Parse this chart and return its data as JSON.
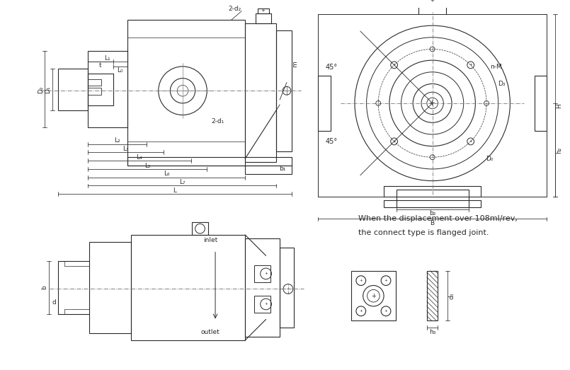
{
  "bg_color": "#ffffff",
  "line_color": "#2a2a2a",
  "text_note1": "When the displacement over 108ml/rev,",
  "text_note2": "the connect type is flanged joint.",
  "labels": {
    "L": "L",
    "L0": "L₀",
    "L1": "L₁",
    "L2": "L₂",
    "L3": "L₃",
    "L4": "L₄",
    "L5": "L₅",
    "L6": "L₆",
    "L7": "L₇",
    "D1": "D₁",
    "D2": "D₂",
    "d1": "2-d₁",
    "d2": "2-d₂",
    "m": "m",
    "b1": "b₁",
    "b2": "b₂",
    "B": "B",
    "H": "H",
    "h2": "h₂",
    "D3": "D₃",
    "D0": "D₀",
    "nM": "n-M",
    "t": "t",
    "b": "b",
    "d": "d",
    "h3": "h₃",
    "d3": "d₃",
    "inlet": "inlet",
    "outlet": "outlet",
    "angle1": "45°",
    "angle2": "45°"
  }
}
